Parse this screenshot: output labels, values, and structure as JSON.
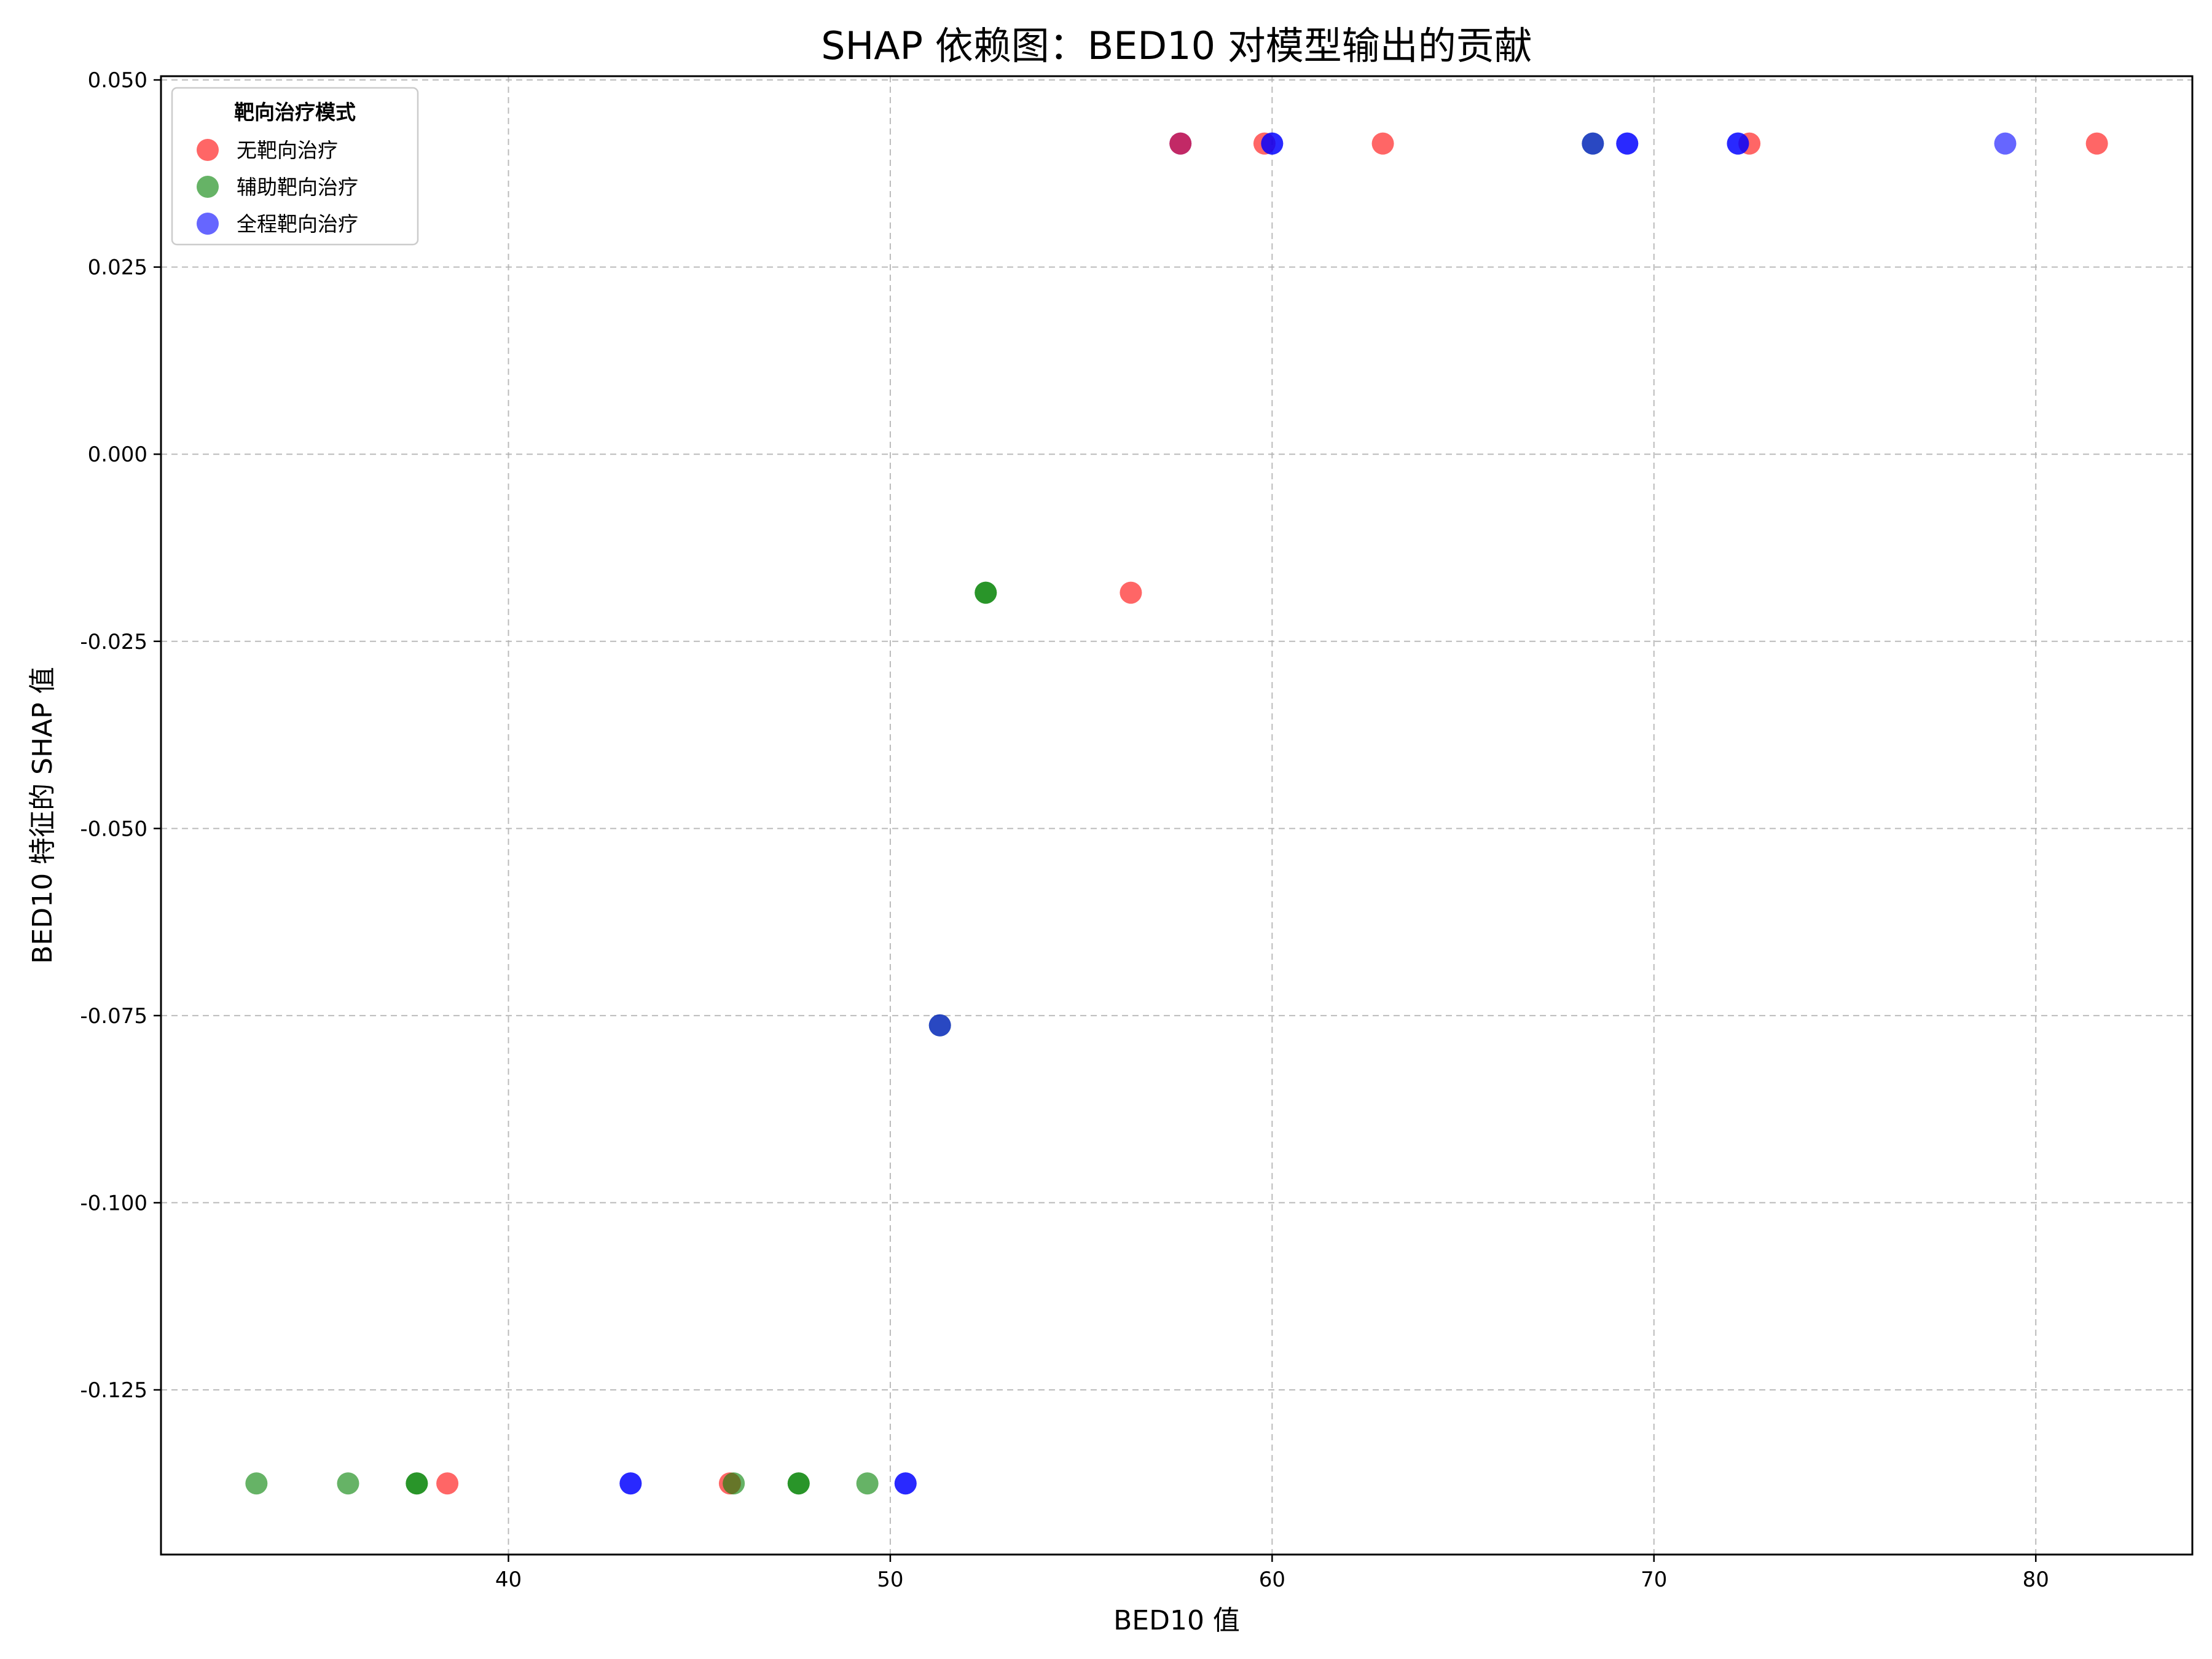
{
  "chart_data": {
    "type": "scatter",
    "title": "SHAP 依赖图：BED10 对模型输出的贡献",
    "xlabel": "BED10 值",
    "ylabel": "BED10 特征的 SHAP 值",
    "xlim": [
      30.9,
      84.1
    ],
    "ylim": [
      -0.147,
      0.0505
    ],
    "xticks": [
      40,
      50,
      60,
      70,
      80
    ],
    "xtick_labels": [
      "40",
      "50",
      "60",
      "70",
      "80"
    ],
    "yticks": [
      -0.125,
      -0.1,
      -0.075,
      -0.05,
      -0.025,
      0.0,
      0.025,
      0.05
    ],
    "ytick_labels": [
      "-0.125",
      "-0.100",
      "-0.075",
      "-0.050",
      "-0.025",
      "0.000",
      "0.025",
      "0.050"
    ],
    "grid": true,
    "legend": {
      "title": "靶向治疗模式",
      "position": "top-left"
    },
    "series": [
      {
        "name": "无靶向治疗",
        "color": "#ff0000",
        "points": [
          {
            "x": 38.4,
            "y": -0.1375
          },
          {
            "x": 45.8,
            "y": -0.1375
          },
          {
            "x": 56.3,
            "y": -0.0185
          },
          {
            "x": 59.8,
            "y": 0.0415
          },
          {
            "x": 62.9,
            "y": 0.0415
          },
          {
            "x": 72.5,
            "y": 0.0415
          },
          {
            "x": 81.6,
            "y": 0.0415
          }
        ]
      },
      {
        "name": "辅助靶向治疗",
        "color": "#008000",
        "points": [
          {
            "x": 33.4,
            "y": -0.1375
          },
          {
            "x": 35.8,
            "y": -0.1375
          },
          {
            "x": 37.6,
            "y": -0.1375
          },
          {
            "x": 37.6,
            "y": -0.1375
          },
          {
            "x": 45.9,
            "y": -0.1375
          },
          {
            "x": 47.6,
            "y": -0.1375
          },
          {
            "x": 47.6,
            "y": -0.1375
          },
          {
            "x": 49.4,
            "y": -0.1375
          },
          {
            "x": 52.5,
            "y": -0.0185
          },
          {
            "x": 52.5,
            "y": -0.0185
          },
          {
            "x": 51.3,
            "y": -0.0763
          },
          {
            "x": 68.4,
            "y": 0.0415
          }
        ]
      },
      {
        "name": "全程靶向治疗",
        "color": "#0000ff",
        "points": [
          {
            "x": 43.2,
            "y": -0.1375
          },
          {
            "x": 43.2,
            "y": -0.1375
          },
          {
            "x": 50.4,
            "y": -0.1375
          },
          {
            "x": 50.4,
            "y": -0.1375
          },
          {
            "x": 51.3,
            "y": -0.0763
          },
          {
            "x": 57.6,
            "y": 0.0415
          },
          {
            "x": 60.0,
            "y": 0.0415
          },
          {
            "x": 60.0,
            "y": 0.0415
          },
          {
            "x": 68.4,
            "y": 0.0415
          },
          {
            "x": 69.3,
            "y": 0.0415
          },
          {
            "x": 69.3,
            "y": 0.0415
          },
          {
            "x": 72.2,
            "y": 0.0415
          },
          {
            "x": 72.2,
            "y": 0.0415
          },
          {
            "x": 79.2,
            "y": 0.0415
          }
        ]
      }
    ],
    "extra_overlaps": [
      {
        "x": 57.6,
        "y": 0.0415,
        "color": "#ff0000"
      }
    ]
  }
}
